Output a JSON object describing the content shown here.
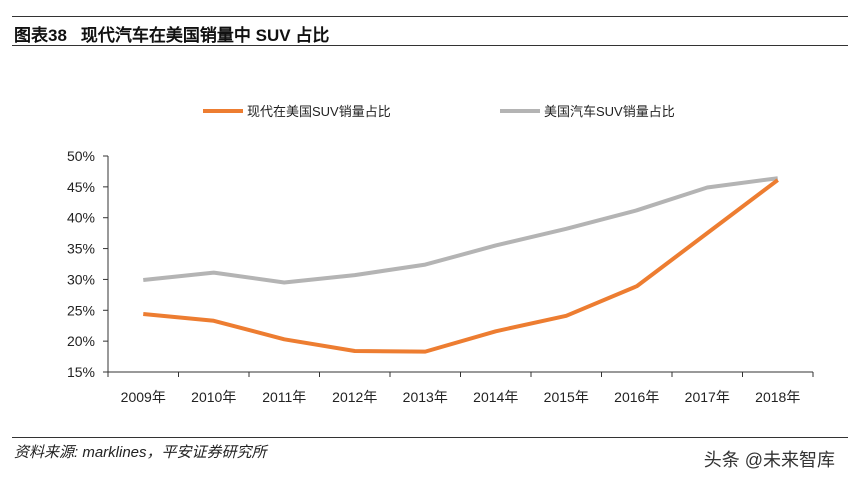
{
  "header": {
    "figure_no": "图表38",
    "title": "现代汽车在美国销量中 SUV 占比"
  },
  "source": "资料来源: marklines，平安证券研究所",
  "watermark": "头条 @未来智库",
  "chart_data": {
    "type": "line",
    "categories": [
      "2009年",
      "2010年",
      "2011年",
      "2012年",
      "2013年",
      "2014年",
      "2015年",
      "2016年",
      "2017年",
      "2018年"
    ],
    "ylim": [
      0.15,
      0.5
    ],
    "yticks": [
      "50%",
      "45%",
      "40%",
      "35%",
      "30%",
      "25%",
      "20%",
      "15%"
    ],
    "ytick_values": [
      0.5,
      0.45,
      0.4,
      0.35,
      0.3,
      0.25,
      0.2,
      0.15
    ],
    "grid": false,
    "legend_position": "top",
    "series": [
      {
        "name": "现代在美国SUV销量占比",
        "color": "#ED7D31",
        "values": [
          0.244,
          0.233,
          0.203,
          0.184,
          0.183,
          0.216,
          0.241,
          0.289,
          0.375,
          0.461
        ]
      },
      {
        "name": "美国汽车SUV销量占比",
        "color": "#B4B4B4",
        "values": [
          0.299,
          0.311,
          0.295,
          0.307,
          0.324,
          0.355,
          0.382,
          0.412,
          0.449,
          0.464
        ]
      }
    ]
  }
}
